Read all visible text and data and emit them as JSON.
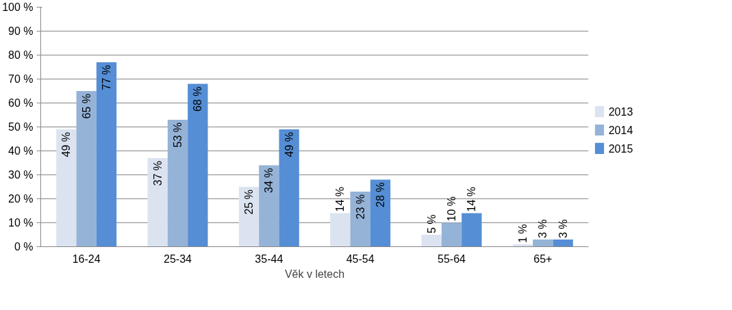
{
  "chart_data": {
    "type": "bar",
    "xlabel": "Věk v letech",
    "categories": [
      "16-24",
      "25-34",
      "35-44",
      "45-54",
      "55-64",
      "65+"
    ],
    "series": [
      {
        "name": "2013",
        "color": "#dce3f0",
        "values": [
          49,
          37,
          25,
          14,
          5,
          1
        ],
        "value_labels": [
          "49 %",
          "37 %",
          "25 %",
          "14 %",
          "5 %",
          "1 %"
        ]
      },
      {
        "name": "2014",
        "color": "#95b3d7",
        "values": [
          65,
          53,
          34,
          23,
          10,
          3
        ],
        "value_labels": [
          "65 %",
          "53 %",
          "34 %",
          "23 %",
          "10 %",
          "3 %"
        ]
      },
      {
        "name": "2015",
        "color": "#558ed5",
        "values": [
          77,
          68,
          49,
          28,
          14,
          3
        ],
        "value_labels": [
          "77 %",
          "68 %",
          "49 %",
          "28 %",
          "14 %",
          "3 %"
        ]
      }
    ],
    "ylim": [
      0,
      100
    ],
    "yticks": [
      {
        "value": 0,
        "label": "0 %"
      },
      {
        "value": 10,
        "label": "10 %"
      },
      {
        "value": 20,
        "label": "20 %"
      },
      {
        "value": 30,
        "label": "30 %"
      },
      {
        "value": 40,
        "label": "40 %"
      },
      {
        "value": 50,
        "label": "50 %"
      },
      {
        "value": 60,
        "label": "60 %"
      },
      {
        "value": 70,
        "label": "70 %"
      },
      {
        "value": 80,
        "label": "80 %"
      },
      {
        "value": 90,
        "label": "90 %"
      },
      {
        "value": 100,
        "label": "100 %"
      }
    ],
    "grid": "y",
    "legend": "right"
  }
}
